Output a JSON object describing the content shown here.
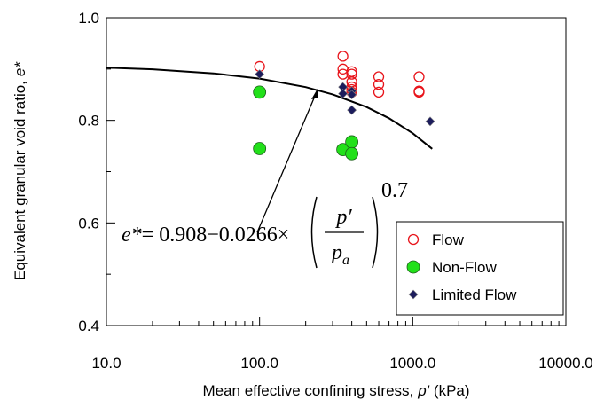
{
  "chart_data": {
    "type": "scatter",
    "xlabel": [
      "Mean effective confining stress,",
      "p′",
      "(kPa)"
    ],
    "ylabel": [
      "Equivalent granular void ratio,",
      "e*"
    ],
    "xscale": "log",
    "xlim": [
      10,
      10000
    ],
    "xticks": [
      {
        "value": 10,
        "label": "10.0"
      },
      {
        "value": 100,
        "label": "100.0"
      },
      {
        "value": 1000,
        "label": "1000.0"
      },
      {
        "value": 10000,
        "label": "10000.0"
      }
    ],
    "xminorticks": [
      20,
      30,
      40,
      50,
      60,
      70,
      80,
      90,
      200,
      300,
      400,
      500,
      600,
      700,
      800,
      900,
      2000,
      3000,
      4000,
      5000,
      6000,
      7000,
      8000,
      9000
    ],
    "ylim": [
      0.4,
      1.0
    ],
    "yticks": [
      0.4,
      0.6,
      0.8,
      {
        "value": 1.0,
        "label": "1.0"
      }
    ],
    "yminorticks": [
      0.5,
      0.7,
      0.9
    ],
    "legend": "lower right",
    "series": [
      {
        "name": "Flow",
        "marker": "open-circle",
        "color": "#e8141b",
        "x": [
          100,
          350,
          350,
          350,
          400,
          400,
          400,
          400,
          400,
          400,
          600,
          600,
          600,
          1100,
          1100,
          1100
        ],
        "values": [
          0.905,
          0.925,
          0.9,
          0.89,
          0.895,
          0.89,
          0.875,
          0.865,
          0.86,
          0.855,
          0.885,
          0.87,
          0.855,
          0.885,
          0.857,
          0.855
        ]
      },
      {
        "name": "Non-Flow",
        "marker": "filled-circle",
        "color": "#22e01a",
        "x": [
          100,
          100,
          350,
          400,
          400
        ],
        "values": [
          0.855,
          0.745,
          0.743,
          0.758,
          0.735
        ]
      },
      {
        "name": "Limited Flow",
        "marker": "diamond",
        "color": "#1c1c5c",
        "x": [
          100,
          350,
          350,
          400,
          400,
          400,
          1300
        ],
        "values": [
          0.89,
          0.865,
          0.852,
          0.857,
          0.85,
          0.82,
          0.798
        ]
      }
    ],
    "curve": {
      "color": "#000000",
      "x": [
        10,
        20,
        50,
        100,
        200,
        300,
        500,
        700,
        1000,
        1340
      ],
      "values": [
        0.9027,
        0.8994,
        0.8916,
        0.8814,
        0.8648,
        0.8506,
        0.8259,
        0.8041,
        0.7747,
        0.7444
      ]
    },
    "equation": {
      "lhs": "e*",
      "body": "= 0.908−0.0266×",
      "num": "p′",
      "den": "p",
      "den_sub": "a",
      "exp": "0.7"
    }
  }
}
